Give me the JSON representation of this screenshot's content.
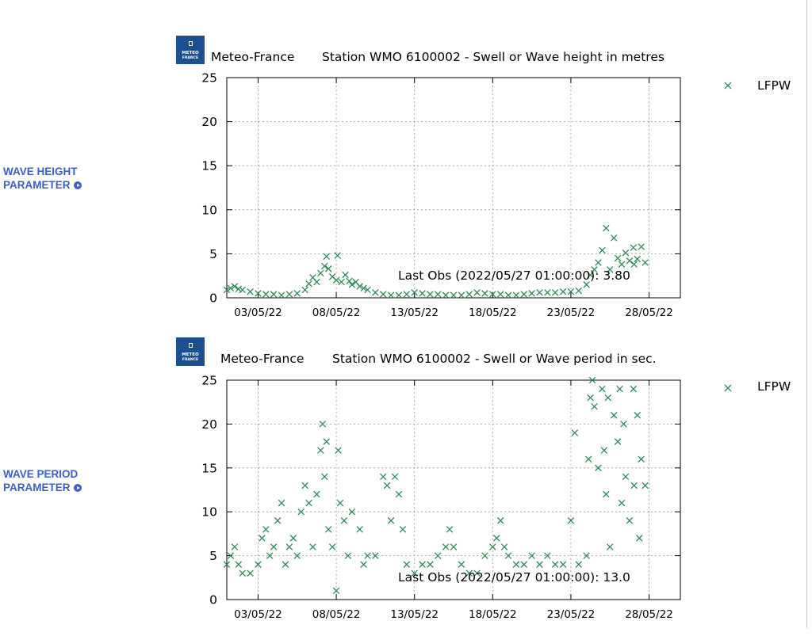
{
  "nav": {
    "wave_height_line1": "WAVE HEIGHT",
    "wave_height_line2": "PARAMETER",
    "wave_period_line1": "WAVE PERIOD",
    "wave_period_line2": "PARAMETER",
    "link_color": "#3b5fc6"
  },
  "logo": {
    "line1": "METEO",
    "line2": "FRANCE",
    "color": "#1c4f8f"
  },
  "point_color": "#2e8b57",
  "chart_data": [
    {
      "type": "scatter",
      "source": "Meteo-France",
      "title": "Station WMO 6100002 - Swell or Wave height in metres",
      "legend": "LFPW",
      "legend_position": "top-right outside plot",
      "grid": true,
      "x_ticks": [
        "03/05/22",
        "08/05/22",
        "13/05/22",
        "18/05/22",
        "23/05/22",
        "28/05/22"
      ],
      "xlim": [
        "2022/05/01 00:00",
        "2022/05/30 00:00"
      ],
      "ylim": [
        0,
        25
      ],
      "y_ticks": [
        0,
        5,
        10,
        15,
        20,
        25
      ],
      "last_obs": "Last Obs (2022/05/27 01:00:00):   3.80",
      "series": [
        {
          "name": "LFPW",
          "points": [
            [
              "2022/05/01 00:00",
              0.9
            ],
            [
              "2022/05/01 06:00",
              1.1
            ],
            [
              "2022/05/01 12:00",
              1.3
            ],
            [
              "2022/05/01 18:00",
              1.0
            ],
            [
              "2022/05/02 00:00",
              0.9
            ],
            [
              "2022/05/02 12:00",
              0.7
            ],
            [
              "2022/05/03 00:00",
              0.5
            ],
            [
              "2022/05/03 12:00",
              0.4
            ],
            [
              "2022/05/04 00:00",
              0.4
            ],
            [
              "2022/05/04 12:00",
              0.3
            ],
            [
              "2022/05/05 00:00",
              0.4
            ],
            [
              "2022/05/05 12:00",
              0.5
            ],
            [
              "2022/05/06 00:00",
              0.9
            ],
            [
              "2022/05/06 06:00",
              1.6
            ],
            [
              "2022/05/06 12:00",
              2.3
            ],
            [
              "2022/05/06 18:00",
              1.8
            ],
            [
              "2022/05/07 00:00",
              2.8
            ],
            [
              "2022/05/07 06:00",
              3.6
            ],
            [
              "2022/05/07 09:00",
              4.7
            ],
            [
              "2022/05/07 12:00",
              3.3
            ],
            [
              "2022/05/07 18:00",
              2.4
            ],
            [
              "2022/05/08 00:00",
              2.0
            ],
            [
              "2022/05/08 02:00",
              4.8
            ],
            [
              "2022/05/08 08:00",
              1.8
            ],
            [
              "2022/05/08 14:00",
              2.6
            ],
            [
              "2022/05/08 20:00",
              1.9
            ],
            [
              "2022/05/09 00:00",
              1.5
            ],
            [
              "2022/05/09 06:00",
              1.8
            ],
            [
              "2022/05/09 12:00",
              1.3
            ],
            [
              "2022/05/09 18:00",
              1.1
            ],
            [
              "2022/05/10 00:00",
              0.9
            ],
            [
              "2022/05/10 12:00",
              0.6
            ],
            [
              "2022/05/11 00:00",
              0.4
            ],
            [
              "2022/05/11 12:00",
              0.3
            ],
            [
              "2022/05/12 00:00",
              0.3
            ],
            [
              "2022/05/12 12:00",
              0.4
            ],
            [
              "2022/05/13 00:00",
              0.6
            ],
            [
              "2022/05/13 12:00",
              0.5
            ],
            [
              "2022/05/14 00:00",
              0.4
            ],
            [
              "2022/05/14 12:00",
              0.4
            ],
            [
              "2022/05/15 00:00",
              0.3
            ],
            [
              "2022/05/15 12:00",
              0.3
            ],
            [
              "2022/05/16 00:00",
              0.3
            ],
            [
              "2022/05/16 12:00",
              0.4
            ],
            [
              "2022/05/17 00:00",
              0.6
            ],
            [
              "2022/05/17 12:00",
              0.5
            ],
            [
              "2022/05/18 00:00",
              0.4
            ],
            [
              "2022/05/18 12:00",
              0.4
            ],
            [
              "2022/05/19 00:00",
              0.3
            ],
            [
              "2022/05/19 12:00",
              0.3
            ],
            [
              "2022/05/20 00:00",
              0.4
            ],
            [
              "2022/05/20 12:00",
              0.5
            ],
            [
              "2022/05/21 00:00",
              0.6
            ],
            [
              "2022/05/21 12:00",
              0.6
            ],
            [
              "2022/05/22 00:00",
              0.6
            ],
            [
              "2022/05/22 12:00",
              0.7
            ],
            [
              "2022/05/23 00:00",
              0.7
            ],
            [
              "2022/05/23 12:00",
              0.8
            ],
            [
              "2022/05/24 00:00",
              1.5
            ],
            [
              "2022/05/24 06:00",
              2.6
            ],
            [
              "2022/05/24 12:00",
              3.2
            ],
            [
              "2022/05/24 18:00",
              4.0
            ],
            [
              "2022/05/25 00:00",
              5.4
            ],
            [
              "2022/05/25 06:00",
              7.9
            ],
            [
              "2022/05/25 12:00",
              3.2
            ],
            [
              "2022/05/25 18:00",
              6.8
            ],
            [
              "2022/05/26 00:00",
              4.5
            ],
            [
              "2022/05/26 06:00",
              3.8
            ],
            [
              "2022/05/26 12:00",
              5.1
            ],
            [
              "2022/05/26 18:00",
              4.2
            ],
            [
              "2022/05/27 00:00",
              5.7
            ],
            [
              "2022/05/27 01:00",
              3.8
            ],
            [
              "2022/05/27 06:00",
              4.4
            ],
            [
              "2022/05/27 12:00",
              5.8
            ],
            [
              "2022/05/27 18:00",
              4.0
            ]
          ]
        }
      ]
    },
    {
      "type": "scatter",
      "source": "Meteo-France",
      "title": "Station WMO 6100002 - Swell or Wave period in sec.",
      "legend": "LFPW",
      "legend_position": "top-right outside plot",
      "grid": true,
      "x_ticks": [
        "03/05/22",
        "08/05/22",
        "13/05/22",
        "18/05/22",
        "23/05/22",
        "28/05/22"
      ],
      "xlim": [
        "2022/05/01 00:00",
        "2022/05/30 00:00"
      ],
      "ylim": [
        0,
        25
      ],
      "y_ticks": [
        0,
        5,
        10,
        15,
        20,
        25
      ],
      "last_obs": "Last Obs (2022/05/27 01:00:00):   13.0",
      "series": [
        {
          "name": "LFPW",
          "points": [
            [
              "2022/05/01 00:00",
              4
            ],
            [
              "2022/05/01 06:00",
              5
            ],
            [
              "2022/05/01 12:00",
              6
            ],
            [
              "2022/05/01 18:00",
              4
            ],
            [
              "2022/05/02 00:00",
              3
            ],
            [
              "2022/05/02 12:00",
              3
            ],
            [
              "2022/05/03 00:00",
              4
            ],
            [
              "2022/05/03 06:00",
              7
            ],
            [
              "2022/05/03 12:00",
              8
            ],
            [
              "2022/05/03 18:00",
              5
            ],
            [
              "2022/05/04 00:00",
              6
            ],
            [
              "2022/05/04 06:00",
              9
            ],
            [
              "2022/05/04 12:00",
              11
            ],
            [
              "2022/05/04 18:00",
              4
            ],
            [
              "2022/05/05 00:00",
              6
            ],
            [
              "2022/05/05 06:00",
              7
            ],
            [
              "2022/05/05 12:00",
              5
            ],
            [
              "2022/05/05 18:00",
              10
            ],
            [
              "2022/05/06 00:00",
              13
            ],
            [
              "2022/05/06 06:00",
              11
            ],
            [
              "2022/05/06 12:00",
              6
            ],
            [
              "2022/05/06 18:00",
              12
            ],
            [
              "2022/05/07 00:00",
              17
            ],
            [
              "2022/05/07 03:00",
              20
            ],
            [
              "2022/05/07 06:00",
              14
            ],
            [
              "2022/05/07 09:00",
              18
            ],
            [
              "2022/05/07 12:00",
              8
            ],
            [
              "2022/05/07 18:00",
              6
            ],
            [
              "2022/05/08 00:00",
              1
            ],
            [
              "2022/05/08 03:00",
              17
            ],
            [
              "2022/05/08 06:00",
              11
            ],
            [
              "2022/05/08 12:00",
              9
            ],
            [
              "2022/05/08 18:00",
              5
            ],
            [
              "2022/05/09 00:00",
              10
            ],
            [
              "2022/05/09 12:00",
              8
            ],
            [
              "2022/05/09 18:00",
              4
            ],
            [
              "2022/05/10 00:00",
              5
            ],
            [
              "2022/05/10 12:00",
              5
            ],
            [
              "2022/05/11 00:00",
              14
            ],
            [
              "2022/05/11 06:00",
              13
            ],
            [
              "2022/05/11 12:00",
              9
            ],
            [
              "2022/05/11 18:00",
              14
            ],
            [
              "2022/05/12 00:00",
              12
            ],
            [
              "2022/05/12 06:00",
              8
            ],
            [
              "2022/05/12 12:00",
              4
            ],
            [
              "2022/05/13 00:00",
              3
            ],
            [
              "2022/05/13 12:00",
              4
            ],
            [
              "2022/05/14 00:00",
              4
            ],
            [
              "2022/05/14 12:00",
              5
            ],
            [
              "2022/05/15 00:00",
              6
            ],
            [
              "2022/05/15 06:00",
              8
            ],
            [
              "2022/05/15 12:00",
              6
            ],
            [
              "2022/05/16 00:00",
              4
            ],
            [
              "2022/05/16 12:00",
              3
            ],
            [
              "2022/05/17 00:00",
              3
            ],
            [
              "2022/05/17 12:00",
              5
            ],
            [
              "2022/05/18 00:00",
              6
            ],
            [
              "2022/05/18 06:00",
              7
            ],
            [
              "2022/05/18 12:00",
              9
            ],
            [
              "2022/05/18 18:00",
              6
            ],
            [
              "2022/05/19 00:00",
              5
            ],
            [
              "2022/05/19 12:00",
              4
            ],
            [
              "2022/05/20 00:00",
              4
            ],
            [
              "2022/05/20 12:00",
              5
            ],
            [
              "2022/05/21 00:00",
              4
            ],
            [
              "2022/05/21 12:00",
              5
            ],
            [
              "2022/05/22 00:00",
              4
            ],
            [
              "2022/05/22 12:00",
              4
            ],
            [
              "2022/05/23 00:00",
              9
            ],
            [
              "2022/05/23 06:00",
              19
            ],
            [
              "2022/05/23 12:00",
              4
            ],
            [
              "2022/05/24 00:00",
              5
            ],
            [
              "2022/05/24 03:00",
              16
            ],
            [
              "2022/05/24 06:00",
              23
            ],
            [
              "2022/05/24 09:00",
              25
            ],
            [
              "2022/05/24 12:00",
              22
            ],
            [
              "2022/05/24 18:00",
              15
            ],
            [
              "2022/05/25 00:00",
              24
            ],
            [
              "2022/05/25 03:00",
              17
            ],
            [
              "2022/05/25 06:00",
              12
            ],
            [
              "2022/05/25 09:00",
              23
            ],
            [
              "2022/05/25 12:00",
              6
            ],
            [
              "2022/05/25 18:00",
              21
            ],
            [
              "2022/05/26 00:00",
              18
            ],
            [
              "2022/05/26 03:00",
              24
            ],
            [
              "2022/05/26 06:00",
              11
            ],
            [
              "2022/05/26 09:00",
              20
            ],
            [
              "2022/05/26 12:00",
              14
            ],
            [
              "2022/05/26 18:00",
              9
            ],
            [
              "2022/05/27 00:00",
              24
            ],
            [
              "2022/05/27 01:00",
              13
            ],
            [
              "2022/05/27 06:00",
              21
            ],
            [
              "2022/05/27 09:00",
              7
            ],
            [
              "2022/05/27 12:00",
              16
            ],
            [
              "2022/05/27 18:00",
              13
            ]
          ]
        }
      ]
    }
  ]
}
